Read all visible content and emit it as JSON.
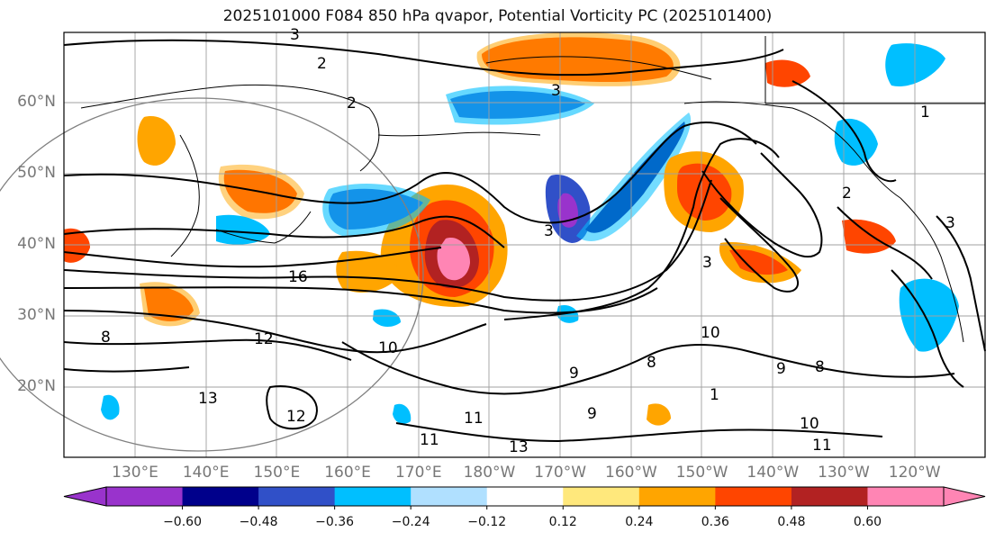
{
  "title": "2025101000 F084 850 hPa qvapor, Potential Vorticity PC (2025101400)",
  "lat_labels": [
    {
      "text": "60°N",
      "lat": 60
    },
    {
      "text": "50°N",
      "lat": 50
    },
    {
      "text": "40°N",
      "lat": 40
    },
    {
      "text": "30°N",
      "lat": 30
    },
    {
      "text": "20°N",
      "lat": 20
    }
  ],
  "lon_labels": [
    "130°E",
    "140°E",
    "150°E",
    "160°E",
    "170°E",
    "180°W",
    "170°W",
    "160°W",
    "150°W",
    "140°W",
    "130°W",
    "120°W"
  ],
  "colorbar": {
    "ticks": [
      "−0.60",
      "−0.48",
      "−0.36",
      "−0.24",
      "−0.12",
      "0.12",
      "0.24",
      "0.36",
      "0.48",
      "0.60"
    ],
    "colors": [
      "#9933cc",
      "#00008b",
      "#3050c8",
      "#00bfff",
      "#b0e0ff",
      "#ffffff",
      "#ffe87c",
      "#ffa500",
      "#ff4500",
      "#b22222",
      "#ff85b4"
    ]
  },
  "contour_labels": [
    "2",
    "3",
    "3",
    "2",
    "1",
    "2",
    "3",
    "16",
    "8",
    "12",
    "13",
    "12",
    "11",
    "13",
    "11",
    "10",
    "9",
    "8",
    "9",
    "10",
    "9",
    "8",
    "1",
    "3",
    "3",
    "10",
    "11"
  ],
  "colors": {
    "contour": "#000000",
    "grid": "#a0a0a0",
    "coast": "#000000",
    "circle": "#808080"
  }
}
